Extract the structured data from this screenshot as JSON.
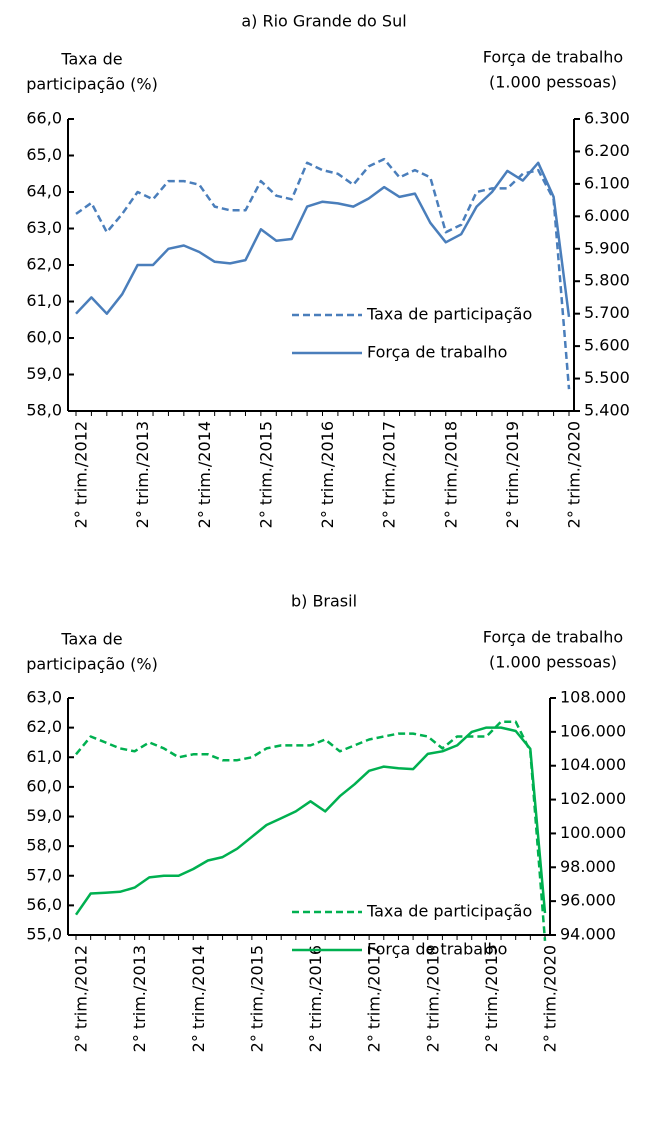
{
  "chart_data": [
    {
      "type": "line",
      "title": "a) Rio Grande do Sul",
      "y_label": [
        "Taxa de",
        "participação (%)"
      ],
      "y2_label": [
        "Força de trabalho",
        "(1.000 pessoas)"
      ],
      "categories": [
        "2° trim./2012",
        null,
        null,
        null,
        "2° trim./2013",
        null,
        null,
        null,
        "2° trim./2014",
        null,
        null,
        null,
        "2° trim./2015",
        null,
        null,
        null,
        "2° trim./2016",
        null,
        null,
        null,
        "2° trim./2017",
        null,
        null,
        null,
        "2° trim./2018",
        null,
        null,
        null,
        "2° trim./2019",
        null,
        null,
        null,
        "2° trim./2020"
      ],
      "series": [
        {
          "name": "Taxa de participação",
          "color": "#4a7ebb",
          "dashed": true,
          "axis": "y",
          "values": [
            63.4,
            63.7,
            62.9,
            63.4,
            64.0,
            63.8,
            64.3,
            64.3,
            64.2,
            63.6,
            63.5,
            63.5,
            64.3,
            63.9,
            63.8,
            64.8,
            64.6,
            64.5,
            64.2,
            64.7,
            64.9,
            64.4,
            64.6,
            64.4,
            62.9,
            63.1,
            64.0,
            64.1,
            64.1,
            64.5,
            64.6,
            63.8,
            58.6
          ]
        },
        {
          "name": "Força de trabalho",
          "color": "#4a7ebb",
          "dashed": false,
          "axis": "y2",
          "values": [
            5700,
            5750,
            5700,
            5760,
            5850,
            5850,
            5900,
            5910,
            5890,
            5860,
            5855,
            5865,
            5960,
            5925,
            5930,
            6030,
            6045,
            6040,
            6030,
            6055,
            6090,
            6060,
            6070,
            5980,
            5920,
            5945,
            6030,
            6075,
            6140,
            6110,
            6165,
            6060,
            5690
          ]
        }
      ],
      "ylim": [
        58,
        66
      ],
      "yticks": [
        {
          "value": 58,
          "label": "58,0"
        },
        {
          "value": 59,
          "label": "59,0"
        },
        {
          "value": 60,
          "label": "60,0"
        },
        {
          "value": 61,
          "label": "61,0"
        },
        {
          "value": 62,
          "label": "62,0"
        },
        {
          "value": 63,
          "label": "63,0"
        },
        {
          "value": 64,
          "label": "64,0"
        },
        {
          "value": 65,
          "label": "65,0"
        },
        {
          "value": 66,
          "label": "66,0"
        }
      ],
      "y2lim": [
        5400,
        6300
      ],
      "y2ticks": [
        {
          "value": 5400,
          "label": "5.400"
        },
        {
          "value": 5500,
          "label": "5.500"
        },
        {
          "value": 5600,
          "label": "5.600"
        },
        {
          "value": 5700,
          "label": "5.700"
        },
        {
          "value": 5800,
          "label": "5.800"
        },
        {
          "value": 5900,
          "label": "5.900"
        },
        {
          "value": 6000,
          "label": "6.000"
        },
        {
          "value": 6100,
          "label": "6.100"
        },
        {
          "value": 6200,
          "label": "6.200"
        },
        {
          "value": 6300,
          "label": "6.300"
        }
      ],
      "legend": "right"
    },
    {
      "type": "line",
      "title": "b) Brasil",
      "y_label": [
        "Taxa de",
        "participação (%)"
      ],
      "y2_label": [
        "Força de trabalho",
        "(1.000 pessoas)"
      ],
      "categories": [
        "2° trim./2012",
        null,
        null,
        null,
        "2° trim./2013",
        null,
        null,
        null,
        "2° trim./2014",
        null,
        null,
        null,
        "2° trim./2015",
        null,
        null,
        null,
        "2° trim./2016",
        null,
        null,
        null,
        "2° trim./2017",
        null,
        null,
        null,
        "2° trim./2018",
        null,
        null,
        null,
        "2° trim./2019",
        null,
        null,
        null,
        "2° trim./2020"
      ],
      "series": [
        {
          "name": "Taxa de participação",
          "color": "#00b050",
          "dashed": true,
          "axis": "y",
          "values": [
            61.1,
            61.7,
            61.5,
            61.3,
            61.2,
            61.5,
            61.3,
            61.0,
            61.1,
            61.1,
            60.9,
            60.9,
            61.0,
            61.3,
            61.4,
            61.4,
            61.4,
            61.6,
            61.2,
            61.4,
            61.6,
            61.7,
            61.8,
            61.8,
            61.7,
            61.3,
            61.7,
            61.7,
            61.7,
            62.2,
            62.2,
            61.2,
            54.8
          ]
        },
        {
          "name": "Força de trabalho",
          "color": "#00b050",
          "dashed": false,
          "axis": "y2",
          "values": [
            95200,
            96450,
            96500,
            96550,
            96800,
            97400,
            97500,
            97500,
            97900,
            98400,
            98600,
            99100,
            99800,
            100500,
            100900,
            101300,
            101900,
            101300,
            102200,
            102900,
            103700,
            103950,
            103850,
            103800,
            104700,
            104850,
            105200,
            106000,
            106250,
            106250,
            106050,
            105000,
            95300
          ]
        }
      ],
      "ylim": [
        55,
        63
      ],
      "yticks": [
        {
          "value": 55,
          "label": "55,0"
        },
        {
          "value": 56,
          "label": "56,0"
        },
        {
          "value": 57,
          "label": "57,0"
        },
        {
          "value": 58,
          "label": "58,0"
        },
        {
          "value": 59,
          "label": "59,0"
        },
        {
          "value": 60,
          "label": "60,0"
        },
        {
          "value": 61,
          "label": "61,0"
        },
        {
          "value": 62,
          "label": "62,0"
        },
        {
          "value": 63,
          "label": "63,0"
        }
      ],
      "y2lim": [
        94000,
        108000
      ],
      "y2ticks": [
        {
          "value": 94000,
          "label": "94.000"
        },
        {
          "value": 96000,
          "label": "96.000"
        },
        {
          "value": 98000,
          "label": "98.000"
        },
        {
          "value": 100000,
          "label": "100.000"
        },
        {
          "value": 102000,
          "label": "102.000"
        },
        {
          "value": 104000,
          "label": "104.000"
        },
        {
          "value": 106000,
          "label": "106.000"
        },
        {
          "value": 108000,
          "label": "108.000"
        }
      ],
      "legend": "right"
    }
  ]
}
